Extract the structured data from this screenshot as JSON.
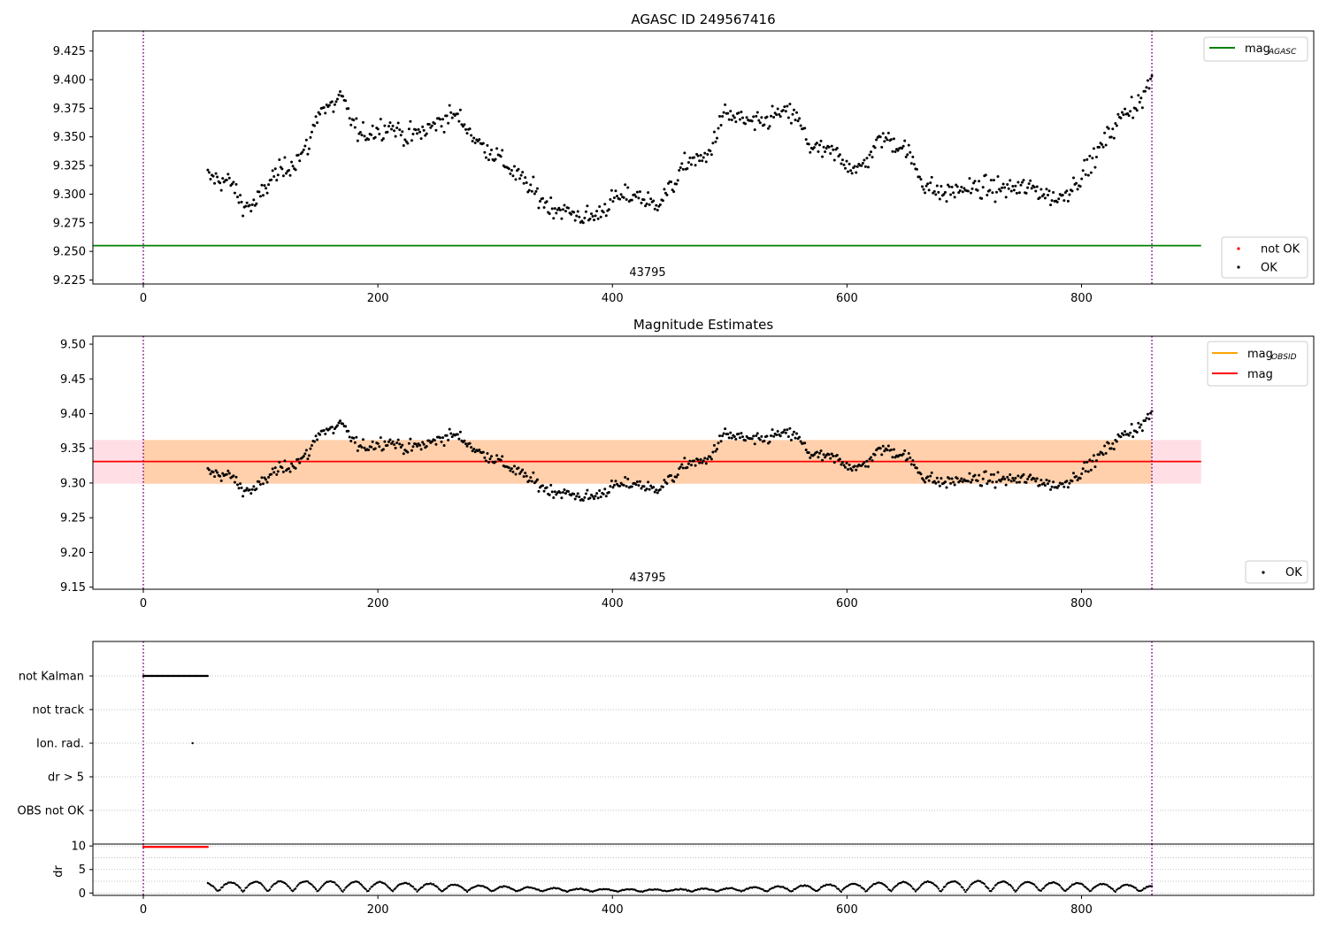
{
  "chart_data": [
    {
      "type": "scatter",
      "title": "AGASC ID 249567416",
      "annotation": "43795",
      "xlim": [
        -43,
        998
      ],
      "ylim": [
        9.2215,
        9.4425
      ],
      "xticks": [
        0,
        200,
        400,
        600,
        800
      ],
      "yticks": [
        9.225,
        9.25,
        9.275,
        9.3,
        9.325,
        9.35,
        9.375,
        9.4,
        9.425
      ],
      "vlines": [
        0,
        860
      ],
      "hlines": [
        {
          "name": "mag_AGASC",
          "y": 9.255,
          "x_range": [
            -43,
            902
          ],
          "color": "#008000"
        }
      ],
      "legends": [
        {
          "position": "upper-right",
          "entries": [
            {
              "label": "mag",
              "sub": "AGASC",
              "kind": "line",
              "color": "#008000"
            }
          ]
        },
        {
          "position": "lower-right",
          "entries": [
            {
              "label": "not OK",
              "kind": "dot",
              "color": "#ff0000"
            },
            {
              "label": "OK",
              "kind": "dot",
              "color": "#000000"
            }
          ]
        }
      ],
      "series_ref": "mag_points",
      "x_range_points": [
        55,
        860
      ]
    },
    {
      "type": "scatter",
      "title": "Magnitude Estimates",
      "annotation": "43795",
      "xlim": [
        -43,
        998
      ],
      "ylim": [
        9.147,
        9.5115
      ],
      "xticks": [
        0,
        200,
        400,
        600,
        800
      ],
      "yticks": [
        9.15,
        9.2,
        9.25,
        9.3,
        9.35,
        9.4,
        9.45,
        9.5
      ],
      "vlines": [
        0,
        860
      ],
      "hlines": [
        {
          "name": "mag",
          "y": 9.331,
          "x_range": [
            -43,
            902
          ],
          "color": "#ff0000"
        }
      ],
      "bands": [
        {
          "y_range": [
            9.299,
            9.362
          ],
          "x_range": [
            -43,
            902
          ],
          "color": "#ffc0cb",
          "opacity": 0.5
        },
        {
          "y_range": [
            9.299,
            9.362
          ],
          "x_range": [
            0,
            860
          ],
          "color": "#ffa500",
          "opacity": 0.25
        }
      ],
      "legends": [
        {
          "position": "upper-right",
          "entries": [
            {
              "label": "mag",
              "sub": "OBSID",
              "kind": "line",
              "color": "#ffa500"
            },
            {
              "label": "mag",
              "kind": "line",
              "color": "#ff0000"
            }
          ]
        },
        {
          "position": "lower-right",
          "entries": [
            {
              "label": "OK",
              "kind": "dot",
              "color": "#000000"
            }
          ]
        }
      ],
      "series_ref": "mag_points",
      "x_range_points": [
        55,
        860
      ]
    },
    {
      "type": "scatter",
      "title": "",
      "xlim": [
        -43,
        998
      ],
      "categories": [
        "not Kalman",
        "not track",
        "Ion. rad.",
        "dr > 5",
        "OBS not OK"
      ],
      "flags": [
        {
          "category": "not Kalman",
          "x_range": [
            0,
            55
          ],
          "color": "#000000"
        },
        {
          "category": "Ion. rad.",
          "x": 42,
          "color": "#000000"
        }
      ],
      "vlines": [
        0,
        860
      ]
    },
    {
      "type": "scatter",
      "title": "",
      "ylabel": "dr",
      "xlim": [
        -43,
        998
      ],
      "ylim": [
        -0.5,
        10.4
      ],
      "xticks": [
        0,
        200,
        400,
        600,
        800
      ],
      "yticks": [
        0,
        5,
        10
      ],
      "vlines": [
        0,
        860
      ],
      "series": [
        {
          "name": "not OK",
          "color": "#ff0000",
          "x_range": [
            0,
            55
          ],
          "y": 9.8
        },
        {
          "name": "OK",
          "color": "#000000",
          "x_range": [
            55,
            860
          ],
          "y_range": [
            0,
            2.9
          ]
        }
      ]
    }
  ],
  "mag_points": {
    "x_start": 55,
    "x_end": 860,
    "count": 700,
    "trend_x": [
      55,
      75,
      85,
      95,
      110,
      125,
      140,
      150,
      160,
      168,
      175,
      185,
      195,
      210,
      225,
      240,
      255,
      265,
      275,
      285,
      300,
      315,
      330,
      345,
      360,
      375,
      385,
      400,
      420,
      435,
      450,
      465,
      480,
      495,
      510,
      525,
      540,
      555,
      570,
      590,
      610,
      630,
      650,
      665,
      680,
      700,
      720,
      740,
      760,
      780,
      795,
      810,
      825,
      840,
      850,
      860
    ],
    "trend_y": [
      9.315,
      9.31,
      9.29,
      9.29,
      9.315,
      9.325,
      9.34,
      9.375,
      9.375,
      9.385,
      9.37,
      9.35,
      9.355,
      9.36,
      9.35,
      9.355,
      9.365,
      9.37,
      9.36,
      9.345,
      9.335,
      9.32,
      9.305,
      9.29,
      9.285,
      9.28,
      9.28,
      9.295,
      9.3,
      9.29,
      9.305,
      9.33,
      9.33,
      9.37,
      9.365,
      9.36,
      9.37,
      9.37,
      9.34,
      9.335,
      9.32,
      9.35,
      9.34,
      9.31,
      9.3,
      9.305,
      9.305,
      9.305,
      9.305,
      9.295,
      9.31,
      9.33,
      9.355,
      9.375,
      9.38,
      9.4
    ],
    "noise": 0.009
  }
}
